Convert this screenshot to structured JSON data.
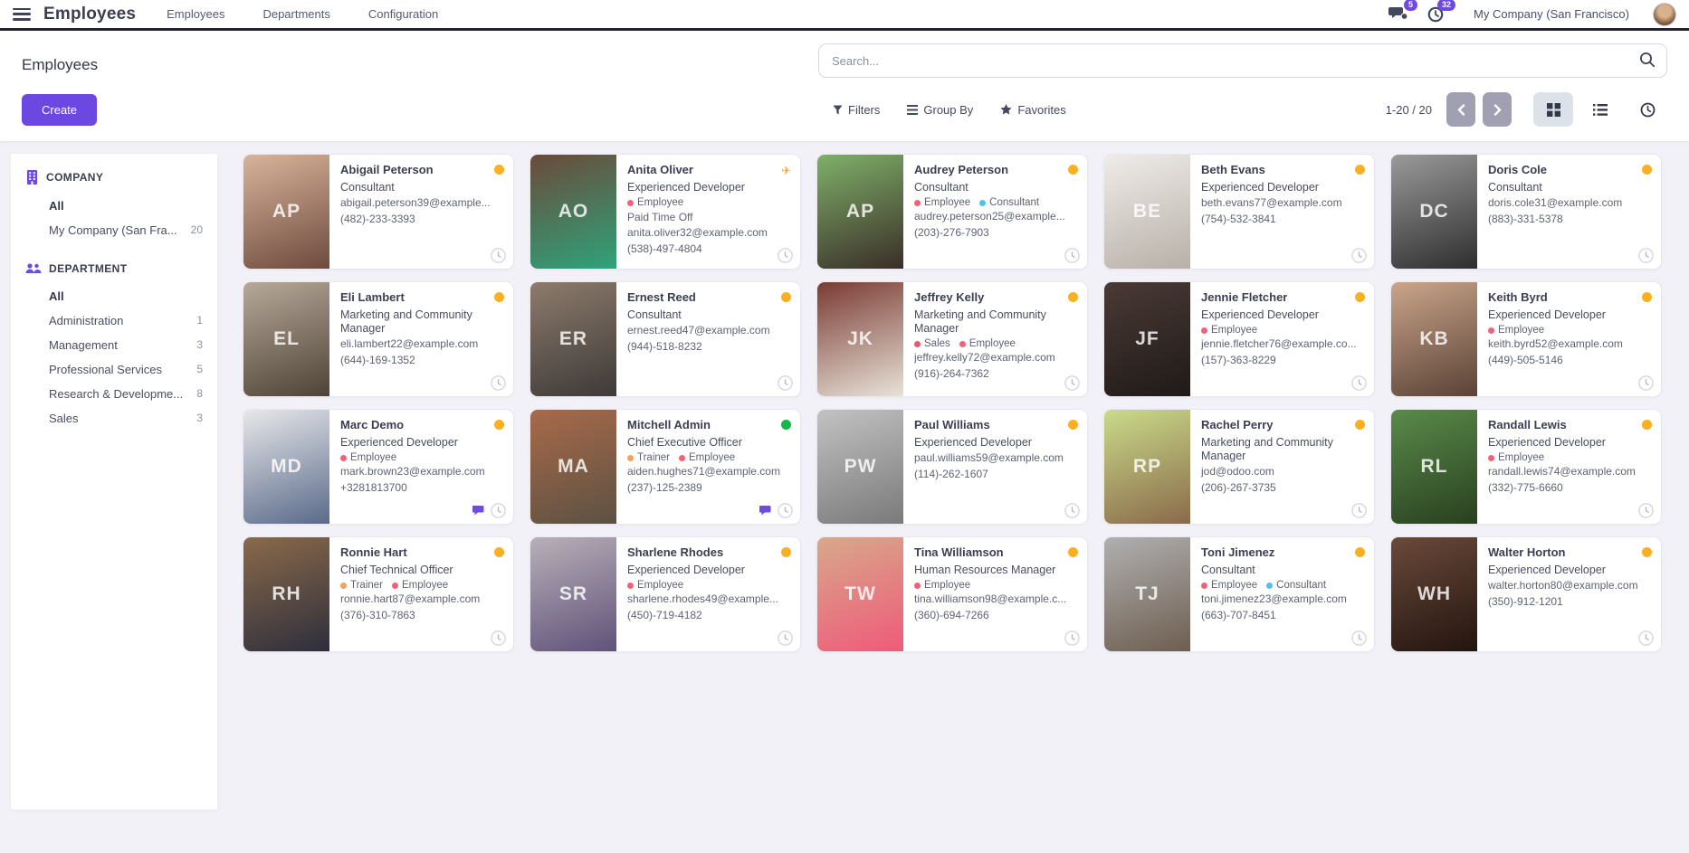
{
  "navbar": {
    "brand": "Employees",
    "menu": [
      "Employees",
      "Departments",
      "Configuration"
    ],
    "messages_count": "5",
    "activities_count": "32",
    "company": "My Company (San Francisco)"
  },
  "control_panel": {
    "title": "Employees",
    "create_label": "Create",
    "search_placeholder": "Search...",
    "filters_label": "Filters",
    "group_by_label": "Group By",
    "favorites_label": "Favorites",
    "pager": "1-20 / 20"
  },
  "sidebar": {
    "company": {
      "title": "COMPANY",
      "items": [
        {
          "label": "All",
          "count": "",
          "bold": true
        },
        {
          "label": "My Company (San Fra...",
          "count": "20",
          "bold": false
        }
      ]
    },
    "department": {
      "title": "DEPARTMENT",
      "items": [
        {
          "label": "All",
          "count": "",
          "bold": true
        },
        {
          "label": "Administration",
          "count": "1",
          "bold": false
        },
        {
          "label": "Management",
          "count": "3",
          "bold": false
        },
        {
          "label": "Professional Services",
          "count": "5",
          "bold": false
        },
        {
          "label": "Research & Developme...",
          "count": "8",
          "bold": false
        },
        {
          "label": "Sales",
          "count": "3",
          "bold": false
        }
      ]
    }
  },
  "colors": {
    "accent_purple": "#6d47e2",
    "status_orange": "#fbb022",
    "status_green": "#12b849",
    "plane_yellow": "#f0a73a",
    "tag_employee": "#f0627a",
    "tag_consultant": "#4ec3ea",
    "tag_trainer": "#f2a25a",
    "tag_sales": "#e8586e",
    "chat_purple": "#6d4be0"
  },
  "employees": [
    {
      "name": "Abigail Peterson",
      "job": "Consultant",
      "tags": [],
      "extra": "",
      "email": "abigail.peterson39@example...",
      "phone": "(482)-233-3393",
      "status": "orange",
      "chat": false,
      "photo": {
        "c1": "#d9b49b",
        "c2": "#6e4a3e",
        "initials": "AP"
      }
    },
    {
      "name": "Anita Oliver",
      "job": "Experienced Developer",
      "tags": [
        {
          "label": "Employee",
          "color": "#f0627a"
        }
      ],
      "extra": "Paid Time Off",
      "email": "anita.oliver32@example.com",
      "phone": "(538)-497-4804",
      "status": "plane",
      "chat": false,
      "photo": {
        "c1": "#6b4a3a",
        "c2": "#2ea37a",
        "initials": "AO"
      }
    },
    {
      "name": "Audrey Peterson",
      "job": "Consultant",
      "tags": [
        {
          "label": "Employee",
          "color": "#f0627a"
        },
        {
          "label": "Consultant",
          "color": "#4ec3ea"
        }
      ],
      "extra": "",
      "email": "audrey.peterson25@example...",
      "phone": "(203)-276-7903",
      "status": "orange",
      "chat": false,
      "photo": {
        "c1": "#7fb069",
        "c2": "#3a2e28",
        "initials": "AP"
      }
    },
    {
      "name": "Beth Evans",
      "job": "Experienced Developer",
      "tags": [],
      "extra": "",
      "email": "beth.evans77@example.com",
      "phone": "(754)-532-3841",
      "status": "orange",
      "chat": false,
      "photo": {
        "c1": "#efece9",
        "c2": "#b8b0a8",
        "initials": "BE"
      }
    },
    {
      "name": "Doris Cole",
      "job": "Consultant",
      "tags": [],
      "extra": "",
      "email": "doris.cole31@example.com",
      "phone": "(883)-331-5378",
      "status": "orange",
      "chat": false,
      "photo": {
        "c1": "#9a9a9a",
        "c2": "#2e2e2e",
        "initials": "DC"
      }
    },
    {
      "name": "Eli Lambert",
      "job": "Marketing and Community Manager",
      "tags": [],
      "extra": "",
      "email": "eli.lambert22@example.com",
      "phone": "(644)-169-1352",
      "status": "orange",
      "chat": false,
      "photo": {
        "c1": "#b7a99a",
        "c2": "#4e4336",
        "initials": "EL"
      }
    },
    {
      "name": "Ernest Reed",
      "job": "Consultant",
      "tags": [],
      "extra": "",
      "email": "ernest.reed47@example.com",
      "phone": "(944)-518-8232",
      "status": "orange",
      "chat": false,
      "photo": {
        "c1": "#8d7b6c",
        "c2": "#3d3a38",
        "initials": "ER"
      }
    },
    {
      "name": "Jeffrey Kelly",
      "job": "Marketing and Community Manager",
      "tags": [
        {
          "label": "Sales",
          "color": "#e8586e"
        },
        {
          "label": "Employee",
          "color": "#f0627a"
        }
      ],
      "extra": "",
      "email": "jeffrey.kelly72@example.com",
      "phone": "(916)-264-7362",
      "status": "orange",
      "chat": false,
      "photo": {
        "c1": "#7a3b33",
        "c2": "#e8e2d8",
        "initials": "JK"
      }
    },
    {
      "name": "Jennie Fletcher",
      "job": "Experienced Developer",
      "tags": [
        {
          "label": "Employee",
          "color": "#f0627a"
        }
      ],
      "extra": "",
      "email": "jennie.fletcher76@example.co...",
      "phone": "(157)-363-8229",
      "status": "orange",
      "chat": false,
      "photo": {
        "c1": "#4a3a35",
        "c2": "#1f1a18",
        "initials": "JF"
      }
    },
    {
      "name": "Keith Byrd",
      "job": "Experienced Developer",
      "tags": [
        {
          "label": "Employee",
          "color": "#f0627a"
        }
      ],
      "extra": "",
      "email": "keith.byrd52@example.com",
      "phone": "(449)-505-5146",
      "status": "orange",
      "chat": false,
      "photo": {
        "c1": "#caa58a",
        "c2": "#5a4236",
        "initials": "KB"
      }
    },
    {
      "name": "Marc Demo",
      "job": "Experienced Developer",
      "tags": [
        {
          "label": "Employee",
          "color": "#f0627a"
        }
      ],
      "extra": "",
      "email": "mark.brown23@example.com",
      "phone": "+3281813700",
      "status": "orange",
      "chat": true,
      "photo": {
        "c1": "#e8e8ea",
        "c2": "#5a6a8a",
        "initials": "MD"
      }
    },
    {
      "name": "Mitchell Admin",
      "job": "Chief Executive Officer",
      "tags": [
        {
          "label": "Trainer",
          "color": "#f2a25a"
        },
        {
          "label": "Employee",
          "color": "#f0627a"
        }
      ],
      "extra": "",
      "email": "aiden.hughes71@example.com",
      "phone": "(237)-125-2389",
      "status": "green",
      "chat": true,
      "photo": {
        "c1": "#a86a4a",
        "c2": "#5c5142",
        "initials": "MA"
      }
    },
    {
      "name": "Paul Williams",
      "job": "Experienced Developer",
      "tags": [],
      "extra": "",
      "email": "paul.williams59@example.com",
      "phone": "(114)-262-1607",
      "status": "orange",
      "chat": false,
      "photo": {
        "c1": "#c2c2c2",
        "c2": "#7a7a7a",
        "initials": "PW"
      }
    },
    {
      "name": "Rachel Perry",
      "job": "Marketing and Community Manager",
      "tags": [],
      "extra": "",
      "email": "jod@odoo.com",
      "phone": "(206)-267-3735",
      "status": "orange",
      "chat": false,
      "photo": {
        "c1": "#cadb8a",
        "c2": "#8a6a4a",
        "initials": "RP"
      }
    },
    {
      "name": "Randall Lewis",
      "job": "Experienced Developer",
      "tags": [
        {
          "label": "Employee",
          "color": "#f0627a"
        }
      ],
      "extra": "",
      "email": "randall.lewis74@example.com",
      "phone": "(332)-775-6660",
      "status": "orange",
      "chat": false,
      "photo": {
        "c1": "#5a8a4a",
        "c2": "#28401f",
        "initials": "RL"
      }
    },
    {
      "name": "Ronnie Hart",
      "job": "Chief Technical Officer",
      "tags": [
        {
          "label": "Trainer",
          "color": "#f2a25a"
        },
        {
          "label": "Employee",
          "color": "#f0627a"
        }
      ],
      "extra": "",
      "email": "ronnie.hart87@example.com",
      "phone": "(376)-310-7863",
      "status": "orange",
      "chat": false,
      "photo": {
        "c1": "#8a6a4a",
        "c2": "#2e2e3c",
        "initials": "RH"
      }
    },
    {
      "name": "Sharlene Rhodes",
      "job": "Experienced Developer",
      "tags": [
        {
          "label": "Employee",
          "color": "#f0627a"
        }
      ],
      "extra": "",
      "email": "sharlene.rhodes49@example...",
      "phone": "(450)-719-4182",
      "status": "orange",
      "chat": false,
      "photo": {
        "c1": "#b8b0b8",
        "c2": "#60527a",
        "initials": "SR"
      }
    },
    {
      "name": "Tina Williamson",
      "job": "Human Resources Manager",
      "tags": [
        {
          "label": "Employee",
          "color": "#f0627a"
        }
      ],
      "extra": "",
      "email": "tina.williamson98@example.c...",
      "phone": "(360)-694-7266",
      "status": "orange",
      "chat": false,
      "photo": {
        "c1": "#d8a88a",
        "c2": "#f05a7a",
        "initials": "TW"
      }
    },
    {
      "name": "Toni Jimenez",
      "job": "Consultant",
      "tags": [
        {
          "label": "Employee",
          "color": "#f0627a"
        },
        {
          "label": "Consultant",
          "color": "#4ec3ea"
        }
      ],
      "extra": "",
      "email": "toni.jimenez23@example.com",
      "phone": "(663)-707-8451",
      "status": "orange",
      "chat": false,
      "photo": {
        "c1": "#b0b0b0",
        "c2": "#6e5e50",
        "initials": "TJ"
      }
    },
    {
      "name": "Walter Horton",
      "job": "Experienced Developer",
      "tags": [],
      "extra": "",
      "email": "walter.horton80@example.com",
      "phone": "(350)-912-1201",
      "status": "orange",
      "chat": false,
      "photo": {
        "c1": "#6a4a3a",
        "c2": "#23140f",
        "initials": "WH"
      }
    }
  ]
}
